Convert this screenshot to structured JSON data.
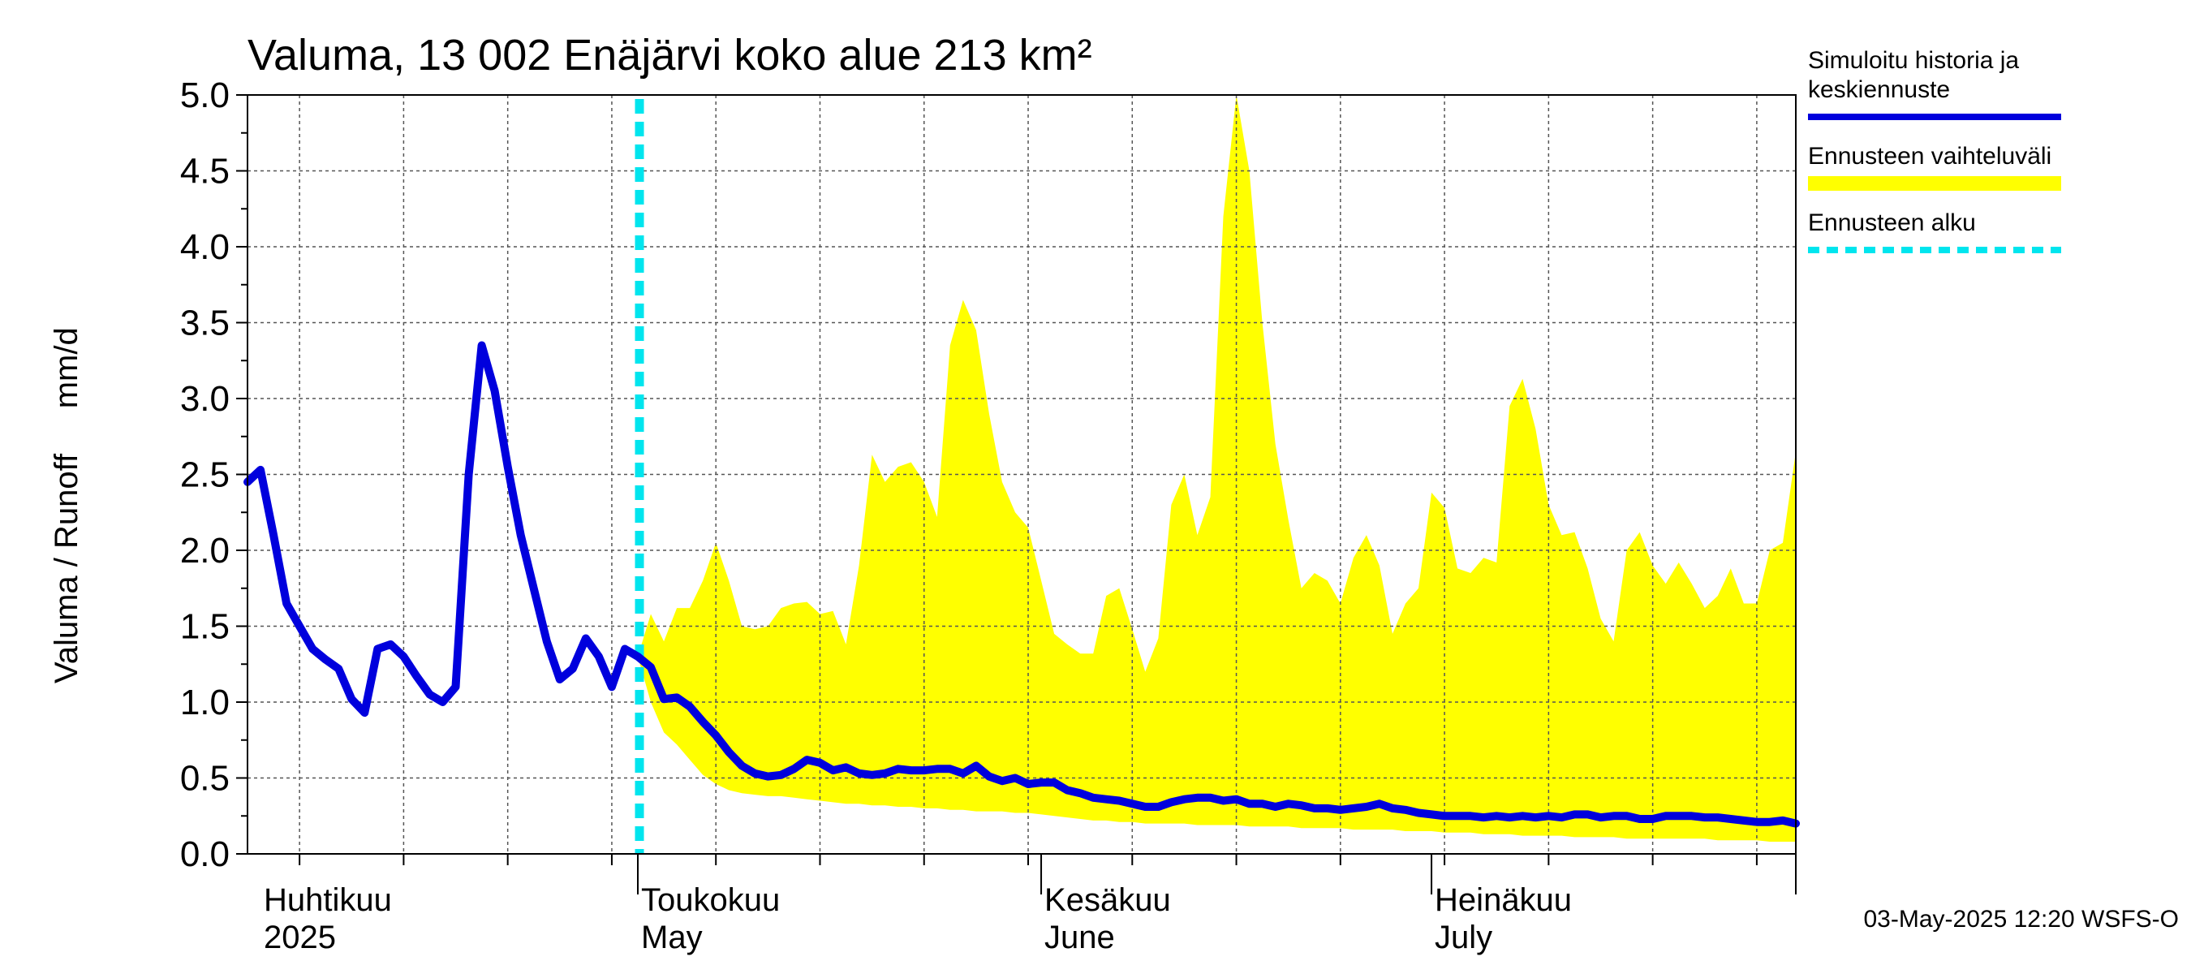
{
  "chart_data": {
    "type": "area",
    "title": "Valuma, 13 002 Enäjärvi koko alue 213 km²",
    "ylabel": "Valuma / Runoff     mm/d",
    "ylim": [
      0,
      5.0
    ],
    "yticks": [
      "0.0",
      "0.5",
      "1.0",
      "1.5",
      "2.0",
      "2.5",
      "3.0",
      "3.5",
      "4.0",
      "4.5",
      "5.0"
    ],
    "x_range_days": [
      0,
      119
    ],
    "x_origin_date": "2025-04-01",
    "month_labels": [
      {
        "day": 1,
        "fi": "Huhtikuu",
        "en": "2025"
      },
      {
        "day": 30,
        "fi": "Toukokuu",
        "en": "May"
      },
      {
        "day": 61,
        "fi": "Kesäkuu",
        "en": "June"
      },
      {
        "day": 91,
        "fi": "Heinäkuu",
        "en": "July"
      }
    ],
    "month_boundaries": [
      30,
      61,
      91
    ],
    "forecast_start_day": 30,
    "legend": [
      {
        "label_lines": [
          "Simuloitu historia ja",
          "keskiennuste"
        ],
        "color": "#0000dd",
        "style": "solid"
      },
      {
        "label_lines": [
          "Ennusteen vaihteluväli"
        ],
        "color": "#ffff00",
        "style": "band"
      },
      {
        "label_lines": [
          "Ennusteen alku"
        ],
        "color": "#00e5ee",
        "style": "dashed"
      }
    ],
    "series": [
      {
        "name": "Simuloitu historia ja keskiennuste",
        "color": "#0000dd",
        "x": [
          0,
          1,
          2,
          3,
          4,
          5,
          6,
          7,
          8,
          9,
          10,
          11,
          12,
          13,
          14,
          15,
          16,
          17,
          18,
          19,
          20,
          21,
          22,
          23,
          24,
          25,
          26,
          27,
          28,
          29,
          30,
          31,
          32,
          33,
          34,
          35,
          36,
          37,
          38,
          39,
          40,
          41,
          42,
          43,
          44,
          45,
          46,
          47,
          48,
          49,
          50,
          51,
          52,
          53,
          54,
          55,
          56,
          57,
          58,
          59,
          60,
          61,
          62,
          63,
          64,
          65,
          66,
          67,
          68,
          69,
          70,
          71,
          72,
          73,
          74,
          75,
          76,
          77,
          78,
          79,
          80,
          81,
          82,
          83,
          84,
          85,
          86,
          87,
          88,
          89,
          90,
          91,
          92,
          93,
          94,
          95,
          96,
          97,
          98,
          99,
          100,
          101,
          102,
          103,
          104,
          105,
          106,
          107,
          108,
          109,
          110,
          111,
          112,
          113,
          114,
          115,
          116,
          117,
          118,
          119
        ],
        "values": [
          2.45,
          2.53,
          2.1,
          1.65,
          1.5,
          1.35,
          1.28,
          1.22,
          1.02,
          0.93,
          1.35,
          1.38,
          1.3,
          1.17,
          1.05,
          1.0,
          1.1,
          2.5,
          3.35,
          3.05,
          2.55,
          2.1,
          1.75,
          1.4,
          1.15,
          1.22,
          1.42,
          1.3,
          1.1,
          1.35,
          1.3,
          1.23,
          1.02,
          1.03,
          0.97,
          0.87,
          0.78,
          0.67,
          0.58,
          0.53,
          0.51,
          0.52,
          0.56,
          0.62,
          0.6,
          0.55,
          0.57,
          0.53,
          0.52,
          0.53,
          0.56,
          0.55,
          0.55,
          0.56,
          0.56,
          0.53,
          0.58,
          0.51,
          0.48,
          0.5,
          0.46,
          0.47,
          0.47,
          0.42,
          0.4,
          0.37,
          0.36,
          0.35,
          0.33,
          0.31,
          0.31,
          0.34,
          0.36,
          0.37,
          0.37,
          0.35,
          0.36,
          0.33,
          0.33,
          0.31,
          0.33,
          0.32,
          0.3,
          0.3,
          0.29,
          0.3,
          0.31,
          0.33,
          0.3,
          0.29,
          0.27,
          0.26,
          0.25,
          0.25,
          0.25,
          0.24,
          0.25,
          0.24,
          0.25,
          0.24,
          0.25,
          0.24,
          0.26,
          0.26,
          0.24,
          0.25,
          0.25,
          0.23,
          0.23,
          0.25,
          0.25,
          0.25,
          0.24,
          0.24,
          0.23,
          0.22,
          0.21,
          0.21,
          0.22,
          0.2
        ]
      },
      {
        "name": "Ennusteen vaihteluväli (ylä)",
        "color": "#ffff00",
        "x": [
          30,
          31,
          32,
          33,
          34,
          35,
          36,
          37,
          38,
          39,
          40,
          41,
          42,
          43,
          44,
          45,
          46,
          47,
          48,
          49,
          50,
          51,
          52,
          53,
          54,
          55,
          56,
          57,
          58,
          59,
          60,
          61,
          62,
          63,
          64,
          65,
          66,
          67,
          68,
          69,
          70,
          71,
          72,
          73,
          74,
          75,
          76,
          77,
          78,
          79,
          80,
          81,
          82,
          83,
          84,
          85,
          86,
          87,
          88,
          89,
          90,
          91,
          92,
          93,
          94,
          95,
          96,
          97,
          98,
          99,
          100,
          101,
          102,
          103,
          104,
          105,
          106,
          107,
          108,
          109,
          110,
          111,
          112,
          113,
          114,
          115,
          116,
          117,
          118,
          119
        ],
        "values": [
          1.3,
          1.58,
          1.4,
          1.62,
          1.62,
          1.8,
          2.05,
          1.8,
          1.5,
          1.48,
          1.5,
          1.62,
          1.65,
          1.66,
          1.58,
          1.6,
          1.38,
          1.9,
          2.63,
          2.45,
          2.55,
          2.58,
          2.45,
          2.22,
          3.35,
          3.65,
          3.45,
          2.9,
          2.45,
          2.25,
          2.15,
          1.8,
          1.45,
          1.38,
          1.32,
          1.32,
          1.7,
          1.75,
          1.48,
          1.2,
          1.42,
          2.3,
          2.5,
          2.1,
          2.35,
          4.2,
          5.0,
          4.5,
          3.5,
          2.7,
          2.2,
          1.75,
          1.85,
          1.8,
          1.65,
          1.95,
          2.1,
          1.9,
          1.45,
          1.65,
          1.75,
          2.38,
          2.28,
          1.88,
          1.85,
          1.95,
          1.92,
          2.95,
          3.13,
          2.8,
          2.3,
          2.1,
          2.12,
          1.88,
          1.55,
          1.4,
          2.0,
          2.12,
          1.9,
          1.78,
          1.92,
          1.78,
          1.62,
          1.7,
          1.88,
          1.65,
          1.65,
          2.0,
          2.05,
          2.65
        ]
      },
      {
        "name": "Ennusteen vaihteluväli (ala)",
        "color": "#ffff00",
        "x": [
          30,
          31,
          32,
          33,
          34,
          35,
          36,
          37,
          38,
          39,
          40,
          41,
          42,
          43,
          44,
          45,
          46,
          47,
          48,
          49,
          50,
          51,
          52,
          53,
          54,
          55,
          56,
          57,
          58,
          59,
          60,
          61,
          62,
          63,
          64,
          65,
          66,
          67,
          68,
          69,
          70,
          71,
          72,
          73,
          74,
          75,
          76,
          77,
          78,
          79,
          80,
          81,
          82,
          83,
          84,
          85,
          86,
          87,
          88,
          89,
          90,
          91,
          92,
          93,
          94,
          95,
          96,
          97,
          98,
          99,
          100,
          101,
          102,
          103,
          104,
          105,
          106,
          107,
          108,
          109,
          110,
          111,
          112,
          113,
          114,
          115,
          116,
          117,
          118,
          119
        ],
        "values": [
          1.3,
          1.0,
          0.8,
          0.72,
          0.62,
          0.52,
          0.46,
          0.42,
          0.4,
          0.39,
          0.38,
          0.38,
          0.37,
          0.36,
          0.35,
          0.34,
          0.33,
          0.33,
          0.32,
          0.32,
          0.31,
          0.31,
          0.3,
          0.3,
          0.29,
          0.29,
          0.28,
          0.28,
          0.28,
          0.27,
          0.27,
          0.26,
          0.25,
          0.24,
          0.23,
          0.22,
          0.22,
          0.21,
          0.21,
          0.2,
          0.2,
          0.2,
          0.2,
          0.19,
          0.19,
          0.19,
          0.19,
          0.18,
          0.18,
          0.18,
          0.18,
          0.17,
          0.17,
          0.17,
          0.17,
          0.16,
          0.16,
          0.16,
          0.16,
          0.15,
          0.15,
          0.15,
          0.14,
          0.14,
          0.14,
          0.13,
          0.13,
          0.13,
          0.12,
          0.12,
          0.12,
          0.12,
          0.11,
          0.11,
          0.11,
          0.11,
          0.1,
          0.1,
          0.1,
          0.1,
          0.1,
          0.1,
          0.1,
          0.09,
          0.09,
          0.09,
          0.09,
          0.08,
          0.08,
          0.08
        ]
      }
    ]
  },
  "footer": "03-May-2025 12:20 WSFS-O"
}
